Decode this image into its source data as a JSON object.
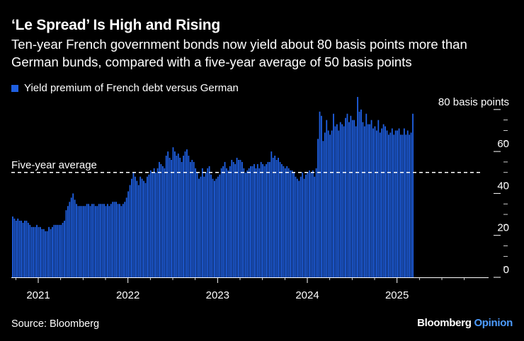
{
  "header": {
    "title": "‘Le Spread’ Is High and Rising",
    "subtitle": "Ten-year French government bonds now yield about 80 basis points more than German bunds, compared with a five-year average of 50 basis points"
  },
  "footer": {
    "source": "Source: Bloomberg",
    "brand_main": "Bloomberg",
    "brand_accent": "Opinion"
  },
  "colors": {
    "bar": "#1f5fe0",
    "background": "#000000",
    "axis": "#ffffff",
    "brand_accent": "#4d9cff"
  },
  "chart_data": {
    "type": "bar",
    "title": "‘Le Spread’ Is High and Rising",
    "legend": [
      "Yield premium of French debt versus German"
    ],
    "legend_position": "top-left",
    "xlabel": "",
    "ylabel": "",
    "ylim": [
      0,
      85
    ],
    "yticks": [
      0,
      20,
      40,
      60,
      80
    ],
    "ytick_labels": [
      "0",
      "20",
      "40",
      "60",
      "80 basis points"
    ],
    "xticks": [
      2021,
      2022,
      2023,
      2024,
      2025
    ],
    "xtick_labels": [
      "2021",
      "2022",
      "2023",
      "2024",
      "2025"
    ],
    "xlim": [
      2020.7,
      2025.95
    ],
    "grid": false,
    "annotations": [
      {
        "label": "Five-year average",
        "y": 50,
        "style": "dashed"
      }
    ],
    "series": [
      {
        "name": "Yield premium of French debt versus German",
        "x_start": 2020.708,
        "x_step": 0.01923,
        "values": [
          29,
          28,
          27,
          28,
          27,
          27,
          26,
          27,
          27,
          26,
          25,
          24,
          24,
          24,
          25,
          24,
          24,
          23,
          23,
          22,
          22,
          24,
          23,
          24,
          25,
          25,
          25,
          25,
          25,
          26,
          27,
          32,
          34,
          36,
          38,
          40,
          37,
          35,
          34,
          34,
          34,
          34,
          34,
          35,
          35,
          34,
          35,
          35,
          34,
          34,
          35,
          35,
          35,
          35,
          34,
          35,
          34,
          35,
          36,
          36,
          36,
          35,
          35,
          34,
          35,
          36,
          38,
          41,
          44,
          47,
          50,
          48,
          46,
          44,
          48,
          47,
          46,
          45,
          48,
          49,
          51,
          50,
          52,
          50,
          52,
          55,
          54,
          53,
          52,
          58,
          60,
          57,
          56,
          62,
          60,
          58,
          59,
          57,
          55,
          58,
          60,
          61,
          58,
          55,
          56,
          55,
          52,
          50,
          47,
          48,
          52,
          48,
          50,
          52,
          53,
          49,
          47,
          46,
          47,
          48,
          49,
          52,
          53,
          55,
          52,
          51,
          53,
          56,
          55,
          54,
          57,
          56,
          56,
          55,
          52,
          50,
          51,
          52,
          53,
          53,
          54,
          52,
          54,
          52,
          55,
          54,
          53,
          54,
          55,
          55,
          60,
          57,
          58,
          56,
          57,
          55,
          54,
          53,
          52,
          53,
          52,
          51,
          51,
          50,
          48,
          47,
          46,
          48,
          50,
          47,
          49,
          50,
          51,
          50,
          51,
          48,
          52,
          66,
          79,
          77,
          65,
          69,
          75,
          70,
          68,
          70,
          78,
          72,
          73,
          70,
          74,
          73,
          72,
          76,
          78,
          74,
          77,
          75,
          75,
          72,
          86,
          79,
          80,
          74,
          72,
          78,
          73,
          73,
          75,
          71,
          72,
          70,
          75,
          69,
          71,
          73,
          72,
          70,
          68,
          69,
          71,
          68,
          70,
          70,
          71,
          68,
          68,
          71,
          68,
          70,
          68,
          69,
          78
        ]
      }
    ]
  }
}
